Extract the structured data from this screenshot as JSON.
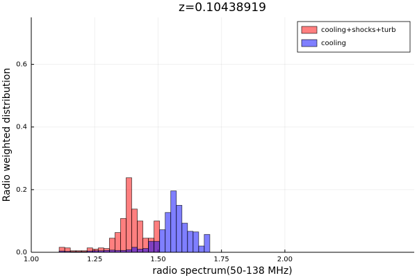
{
  "chart_data": {
    "type": "histogram",
    "title": "z=0.10438919",
    "x_label": "radio spectrum(50-138 MHz)",
    "y_label": "Radio weighted distribution",
    "bins": [
      1.11,
      1.132,
      1.154,
      1.176,
      1.198,
      1.22,
      1.242,
      1.264,
      1.286,
      1.308,
      1.33,
      1.352,
      1.374,
      1.396,
      1.418,
      1.44,
      1.462,
      1.484,
      1.506,
      1.528,
      1.55,
      1.572,
      1.594,
      1.616,
      1.638,
      1.66,
      1.682,
      1.704
    ],
    "series": [
      {
        "name": "cooling+shocks+turb",
        "color": "#ff0000",
        "values": [
          0.016,
          0.014,
          0.005,
          0.005,
          0.005,
          0.014,
          0.01,
          0.014,
          0.012,
          0.045,
          0.063,
          0.108,
          0.238,
          0.138,
          0.1,
          0.045,
          0.045,
          0.1,
          0,
          0,
          0,
          0,
          0,
          0,
          0,
          0,
          0
        ]
      },
      {
        "name": "cooling",
        "color": "#0000ff",
        "values": [
          0.004,
          0.003,
          0.002,
          0.002,
          0.002,
          0.004,
          0.005,
          0.005,
          0.006,
          0.007,
          0.006,
          0.006,
          0.008,
          0.016,
          0.01,
          0.012,
          0.035,
          0.035,
          0.072,
          0.127,
          0.196,
          0.15,
          0.093,
          0.067,
          0.065,
          0.02,
          0.057
        ]
      }
    ],
    "xlim": [
      1.0,
      2.51
    ],
    "ylim": [
      0,
      0.75
    ],
    "xticks": [
      {
        "value": 1,
        "label": "1.00"
      },
      {
        "value": 1.25,
        "label": "1.25"
      },
      {
        "value": 1.5,
        "label": "1.50"
      },
      {
        "value": 1.75,
        "label": "1.75"
      },
      {
        "value": 2,
        "label": "2.00"
      }
    ],
    "yticks": [
      {
        "value": 0,
        "label": "0.0"
      },
      0.2,
      0.4,
      0.6
    ],
    "grid": true,
    "legend": "top-right"
  }
}
